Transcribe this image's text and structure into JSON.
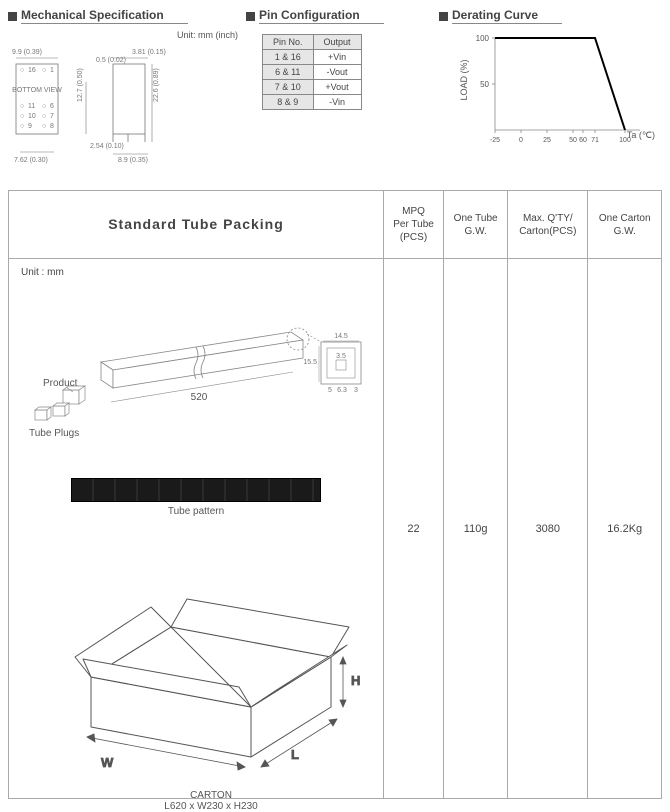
{
  "sections": {
    "mech": "Mechanical Specification",
    "pin": "Pin Configuration",
    "derating": "Derating Curve"
  },
  "mech": {
    "unit_label": "Unit: mm (inch)",
    "dims": {
      "w1": "9.9 (0.39)",
      "w2": "7.62 (0.30)",
      "h1": "12.7 (0.50)",
      "b1": "2.54 (0.10)",
      "t1": "0.5 (0.02)",
      "t2": "3.81 (0.15)",
      "h2": "22.6 (0.89)",
      "b2": "8.9 (0.35)"
    },
    "bottom_view": "BOTTOM\nVIEW",
    "pins_left": [
      "16",
      "11",
      "10",
      "9"
    ],
    "pins_right": [
      "1",
      "6",
      "7",
      "8"
    ]
  },
  "pin_table": {
    "headers": [
      "Pin No.",
      "Output"
    ],
    "rows": [
      [
        "1 & 16",
        "+Vin"
      ],
      [
        "6 & 11",
        "-Vout"
      ],
      [
        "7 & 10",
        "+Vout"
      ],
      [
        "8 & 9",
        "-Vin"
      ]
    ]
  },
  "derating": {
    "ylabel": "LOAD (%)",
    "xlabel": "Ta (℃)",
    "yticks": [
      "100",
      "50"
    ],
    "xticks": [
      "-25",
      "0",
      "25",
      "50",
      "60",
      "71",
      "100"
    ],
    "xtick_pos": [
      0,
      26,
      52,
      78,
      88,
      100,
      130
    ],
    "line_points": "0,0 100,0 130,92",
    "line_color": "#000000",
    "axis_color": "#888888",
    "bg": "#ffffff"
  },
  "packing": {
    "title": "Standard  Tube  Packing",
    "columns": [
      "MPQ\nPer Tube\n(PCS)",
      "One Tube\nG.W.",
      "Max. Q'TY/\nCarton(PCS)",
      "One Carton\nG.W."
    ],
    "values": [
      "22",
      "110g",
      "3080",
      "16.2Kg"
    ],
    "unit": "Unit : mm",
    "tube": {
      "length": "520",
      "product": "Product",
      "plugs": "Tube Plugs",
      "pattern": "Tube pattern",
      "detail": {
        "w": "14.5",
        "h": "15.5",
        "iw": "3.5",
        "ib": "5",
        "ib2": "6.3",
        "ib3": "3"
      }
    },
    "carton": {
      "label": "CARTON",
      "dim": "L620 x W230 x H230",
      "L": "L",
      "W": "W",
      "H": "H"
    }
  }
}
